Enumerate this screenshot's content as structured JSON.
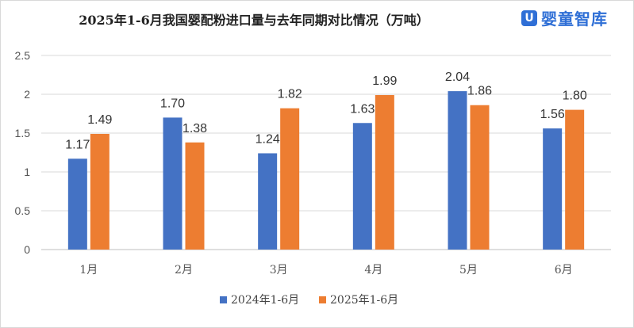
{
  "chart_data": {
    "type": "bar",
    "title": "2025年1-6月我国婴配粉进口量与去年同期对比情况（万吨）",
    "categories": [
      "1月",
      "2月",
      "3月",
      "4月",
      "5月",
      "6月"
    ],
    "series": [
      {
        "name": "2024年1-6月",
        "values": [
          1.17,
          1.7,
          1.24,
          1.63,
          2.04,
          1.56
        ],
        "color": "#4472c4"
      },
      {
        "name": "2025年1-6月",
        "values": [
          1.49,
          1.38,
          1.82,
          1.99,
          1.86,
          1.8
        ],
        "color": "#ed7d31"
      }
    ],
    "data_labels": [
      [
        "1.17",
        "1.70",
        "1.24",
        "1.63",
        "2.04",
        "1.56"
      ],
      [
        "1.49",
        "1.38",
        "1.82",
        "1.99",
        "1.86",
        "1.80"
      ]
    ],
    "yticks": [
      "0",
      "0.5",
      "1",
      "1.5",
      "2",
      "2.5"
    ],
    "ytick_values": [
      0,
      0.5,
      1,
      1.5,
      2,
      2.5
    ],
    "ylim": [
      0,
      2.5
    ],
    "grid": true,
    "legend_position": "bottom"
  },
  "logo": {
    "icon_glyph": "U",
    "text": "婴童智库",
    "color": "#2f6fd6"
  }
}
